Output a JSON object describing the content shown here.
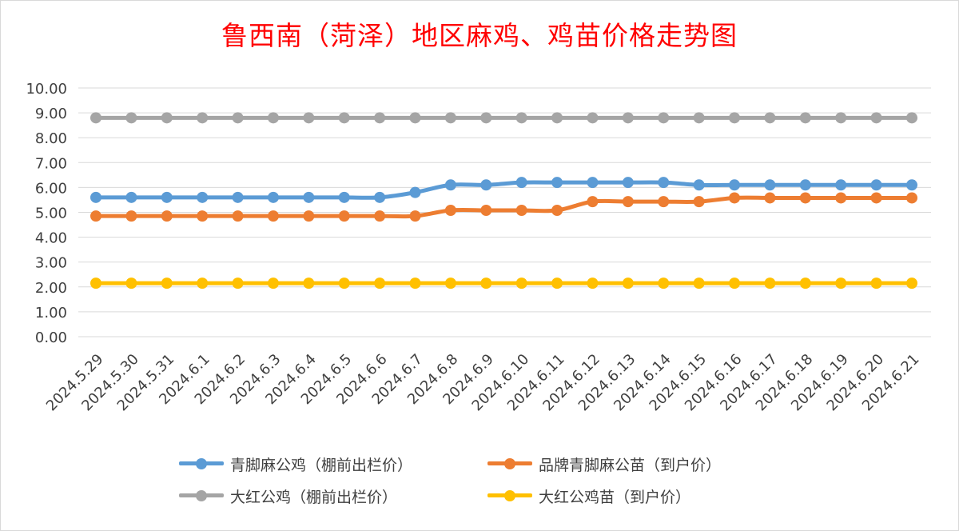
{
  "chart_data": {
    "type": "line",
    "title": "鲁西南（菏泽）地区麻鸡、鸡苗价格走势图",
    "xlabel": "",
    "ylabel": "",
    "ylim": [
      0,
      10
    ],
    "yticks": [
      "0.00",
      "1.00",
      "2.00",
      "3.00",
      "4.00",
      "5.00",
      "6.00",
      "7.00",
      "8.00",
      "9.00",
      "10.00"
    ],
    "grid": true,
    "legend_position": "bottom",
    "categories": [
      "2024.5.29",
      "2024.5.30",
      "2024.5.31",
      "2024.6.1",
      "2024.6.2",
      "2024.6.3",
      "2024.6.4",
      "2024.6.5",
      "2024.6.6",
      "2024.6.7",
      "2024.6.8",
      "2024.6.9",
      "2024.6.10",
      "2024.6.11",
      "2024.6.12",
      "2024.6.13",
      "2024.6.14",
      "2024.6.15",
      "2024.6.16",
      "2024.6.17",
      "2024.6.18",
      "2024.6.19",
      "2024.6.20",
      "2024.6.21"
    ],
    "series": [
      {
        "name": "青脚麻公鸡（棚前出栏价）",
        "color": "#5b9bd5",
        "values": [
          5.6,
          5.6,
          5.6,
          5.6,
          5.6,
          5.6,
          5.6,
          5.6,
          5.6,
          5.8,
          6.1,
          6.1,
          6.2,
          6.2,
          6.2,
          6.2,
          6.2,
          6.1,
          6.1,
          6.1,
          6.1,
          6.1,
          6.1,
          6.1
        ]
      },
      {
        "name": "品牌青脚麻公苗（到户价）",
        "color": "#ed7d31",
        "values": [
          4.85,
          4.85,
          4.85,
          4.85,
          4.85,
          4.85,
          4.85,
          4.85,
          4.85,
          4.85,
          5.08,
          5.08,
          5.08,
          5.08,
          5.43,
          5.43,
          5.43,
          5.43,
          5.58,
          5.58,
          5.58,
          5.58,
          5.58,
          5.58
        ]
      },
      {
        "name": "大红公鸡（棚前出栏价）",
        "color": "#a5a5a5",
        "values": [
          8.8,
          8.8,
          8.8,
          8.8,
          8.8,
          8.8,
          8.8,
          8.8,
          8.8,
          8.8,
          8.8,
          8.8,
          8.8,
          8.8,
          8.8,
          8.8,
          8.8,
          8.8,
          8.8,
          8.8,
          8.8,
          8.8,
          8.8,
          8.8
        ]
      },
      {
        "name": "大红公鸡苗（到户价）",
        "color": "#ffc000",
        "values": [
          2.15,
          2.15,
          2.15,
          2.15,
          2.15,
          2.15,
          2.15,
          2.15,
          2.15,
          2.15,
          2.15,
          2.15,
          2.15,
          2.15,
          2.15,
          2.15,
          2.15,
          2.15,
          2.15,
          2.15,
          2.15,
          2.15,
          2.15,
          2.15
        ]
      }
    ]
  }
}
